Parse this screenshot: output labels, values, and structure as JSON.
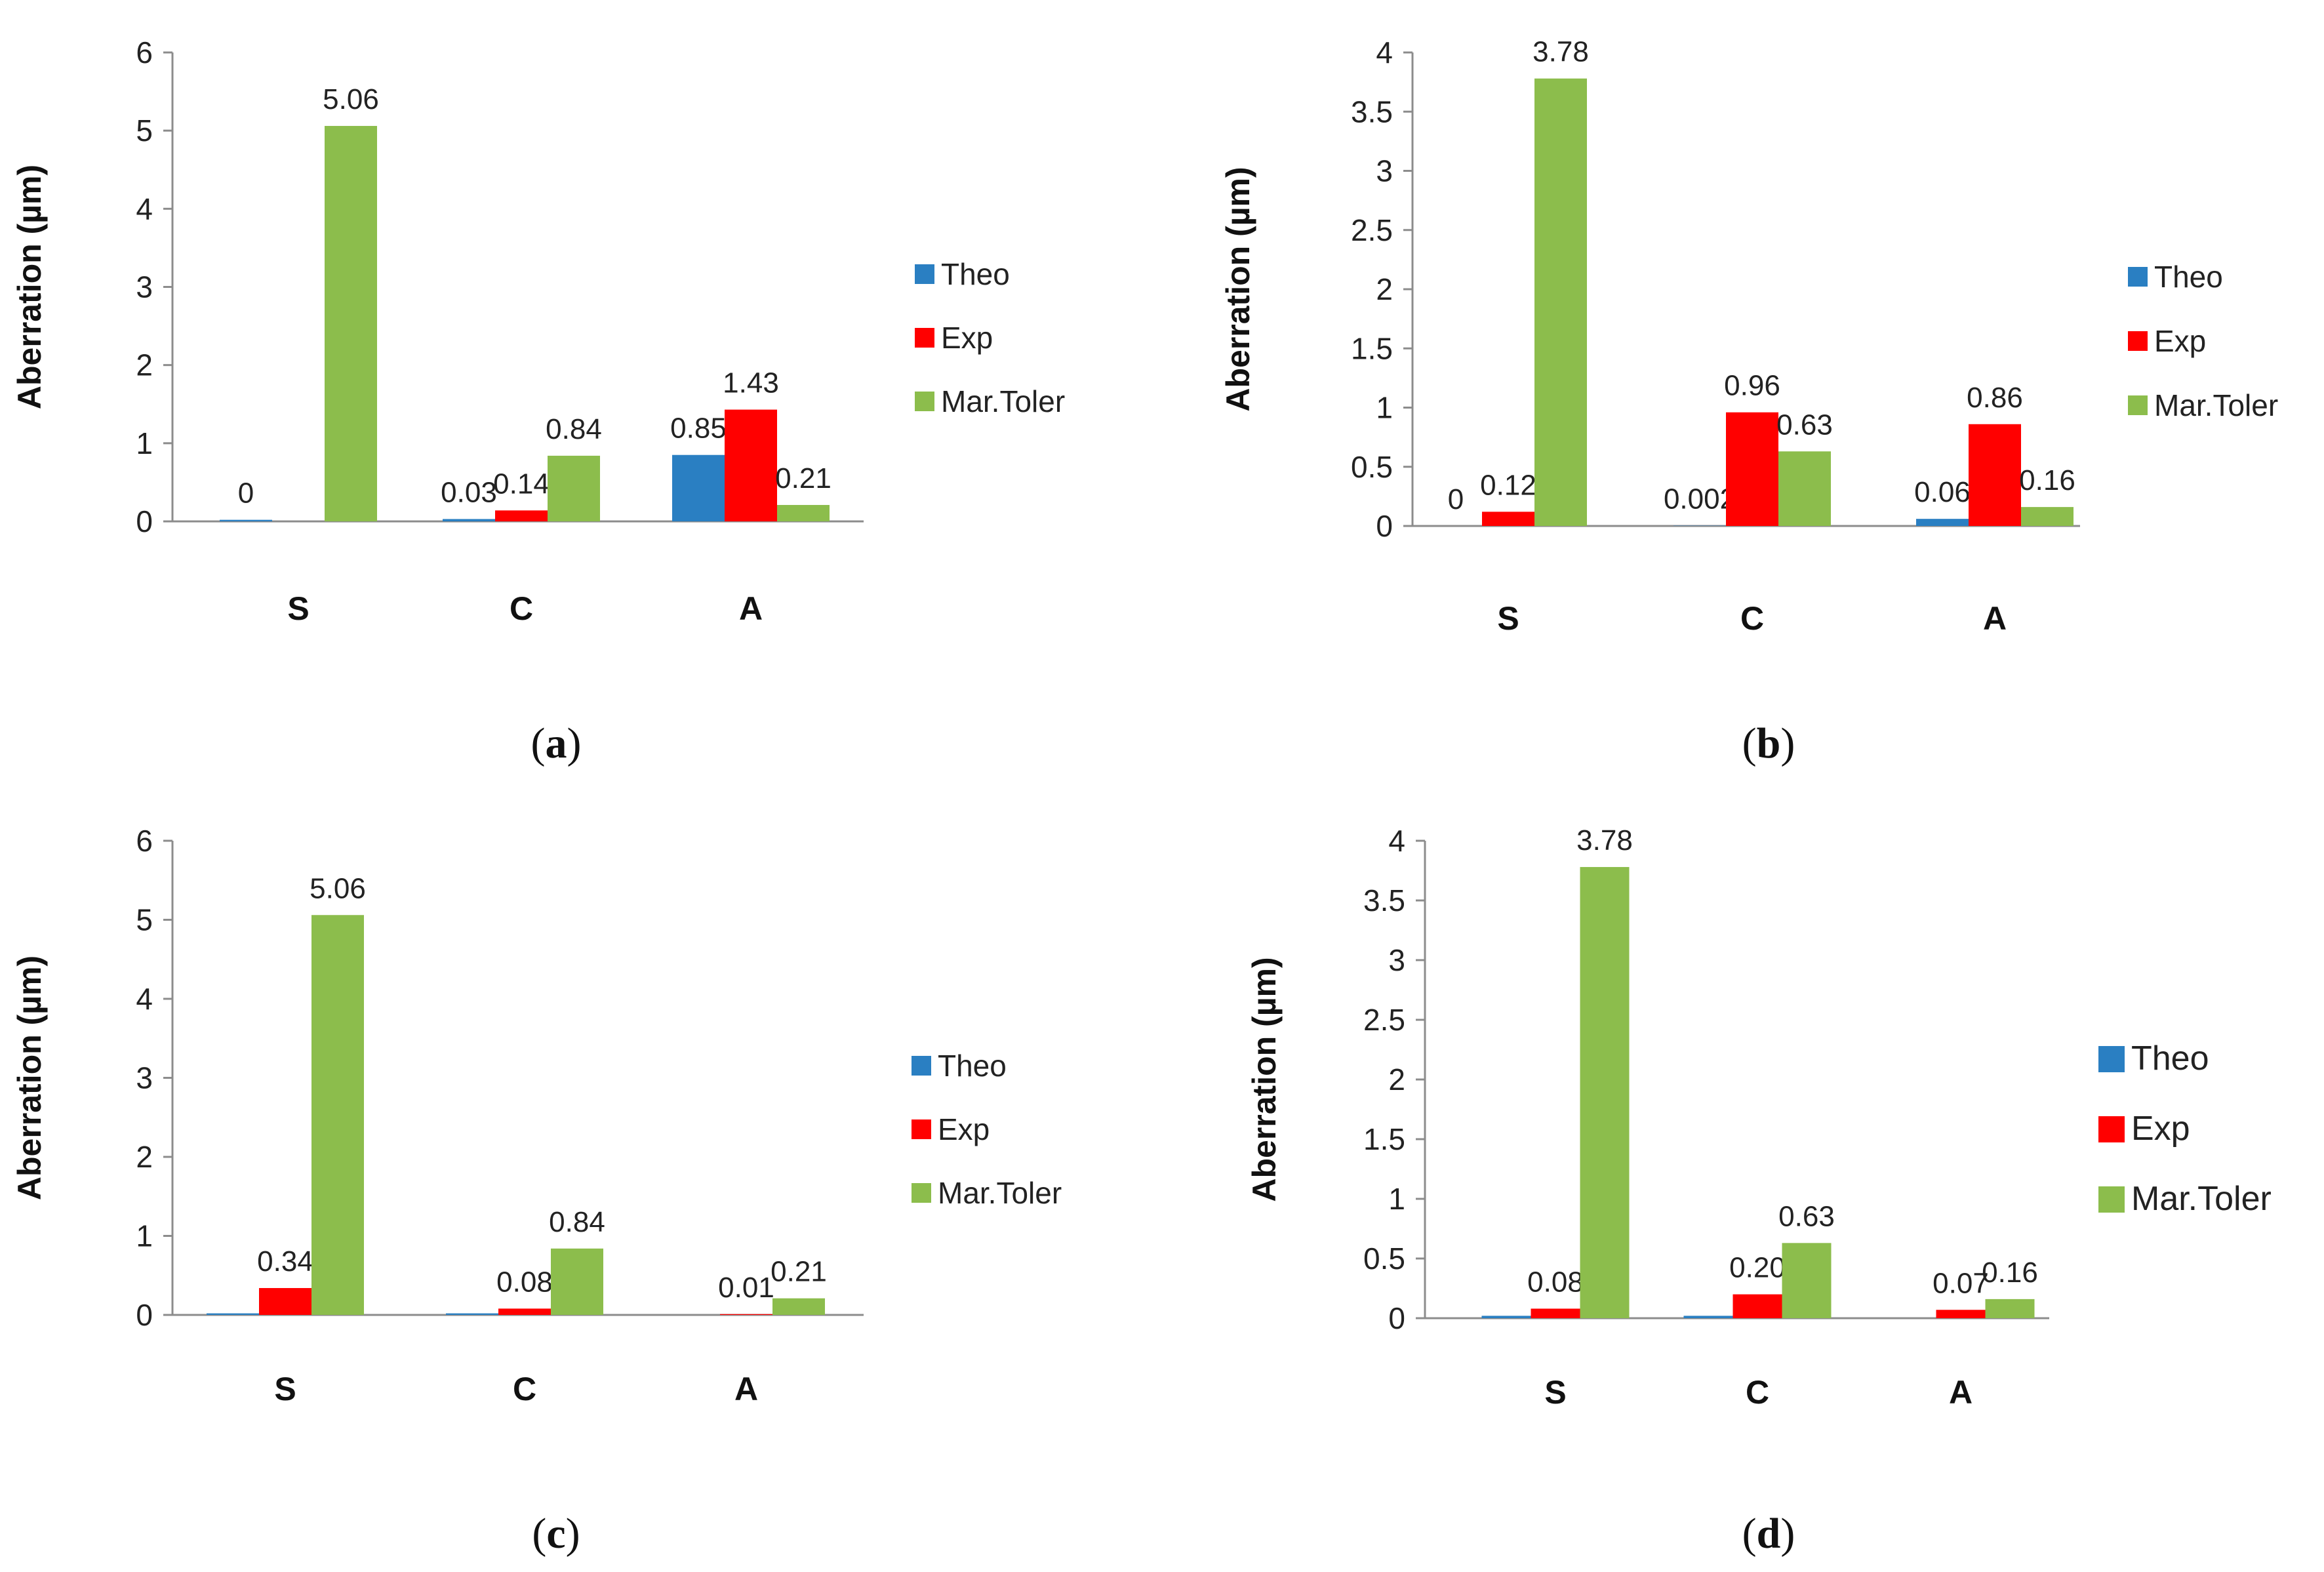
{
  "series_colors": {
    "Theo": "#2a7fc2",
    "Exp": "#ff0000",
    "Mar.Toler": "#8cbd4c"
  },
  "chart_data": [
    {
      "type": "bar",
      "caption": "a",
      "ylabel": "Aberration (µm)",
      "xlabel": "",
      "ylim": [
        0,
        6
      ],
      "yticks": [
        "0",
        "1",
        "2",
        "3",
        "4",
        "5",
        "6"
      ],
      "categories": [
        "S",
        "C",
        "A"
      ],
      "legend_position": "right",
      "series": [
        {
          "name": "Theo",
          "values": [
            0.02,
            0.03,
            0.85
          ],
          "labels": [
            "0",
            "0.03",
            "0.85"
          ]
        },
        {
          "name": "Exp",
          "values": [
            0,
            0.14,
            1.43
          ],
          "labels": [
            "",
            "0.14",
            "1.43"
          ]
        },
        {
          "name": "Mar.Toler",
          "values": [
            5.06,
            0.84,
            0.21
          ],
          "labels": [
            "5.06",
            "0.84",
            "0.21"
          ]
        }
      ]
    },
    {
      "type": "bar",
      "caption": "b",
      "ylabel": "Aberration (µm)",
      "xlabel": "",
      "ylim": [
        0,
        4
      ],
      "yticks": [
        "0",
        "0.5",
        "1",
        "1.5",
        "2",
        "2.5",
        "3",
        "3.5",
        "4"
      ],
      "categories": [
        "S",
        "C",
        "A"
      ],
      "legend_position": "right",
      "series": [
        {
          "name": "Theo",
          "values": [
            0,
            0.002,
            0.06
          ],
          "labels": [
            "0",
            "0.002",
            "0.06"
          ]
        },
        {
          "name": "Exp",
          "values": [
            0.12,
            0.96,
            0.86
          ],
          "labels": [
            "0.12",
            "0.96",
            "0.86"
          ]
        },
        {
          "name": "Mar.Toler",
          "values": [
            3.78,
            0.63,
            0.16
          ],
          "labels": [
            "3.78",
            "0.63",
            "0.16"
          ]
        }
      ]
    },
    {
      "type": "bar",
      "caption": "c",
      "ylabel": "Aberration (µm)",
      "xlabel": "",
      "ylim": [
        0,
        6
      ],
      "yticks": [
        "0",
        "1",
        "2",
        "3",
        "4",
        "5",
        "6"
      ],
      "categories": [
        "S",
        "C",
        "A"
      ],
      "legend_position": "right",
      "series": [
        {
          "name": "Theo",
          "values": [
            0.02,
            0.02,
            0
          ],
          "labels": [
            "",
            "",
            ""
          ]
        },
        {
          "name": "Exp",
          "values": [
            0.34,
            0.08,
            0.01
          ],
          "labels": [
            "0.34",
            "0.08",
            "0.01"
          ]
        },
        {
          "name": "Mar.Toler",
          "values": [
            5.06,
            0.84,
            0.21
          ],
          "labels": [
            "5.06",
            "0.84",
            "0.21"
          ]
        }
      ]
    },
    {
      "type": "bar",
      "caption": "d",
      "ylabel": "Aberration (µm)",
      "xlabel": "",
      "ylim": [
        0,
        4
      ],
      "yticks": [
        "0",
        "0.5",
        "1",
        "1.5",
        "2",
        "2.5",
        "3",
        "3.5",
        "4"
      ],
      "categories": [
        "S",
        "C",
        "A"
      ],
      "legend_position": "right",
      "series": [
        {
          "name": "Theo",
          "values": [
            0.02,
            0.02,
            0
          ],
          "labels": [
            "",
            "",
            ""
          ]
        },
        {
          "name": "Exp",
          "values": [
            0.08,
            0.2,
            0.07
          ],
          "labels": [
            "0.08",
            "0.20",
            "0.07"
          ]
        },
        {
          "name": "Mar.Toler",
          "values": [
            3.78,
            0.63,
            0.16
          ],
          "labels": [
            "3.78",
            "0.63",
            "0.16"
          ]
        }
      ]
    }
  ]
}
